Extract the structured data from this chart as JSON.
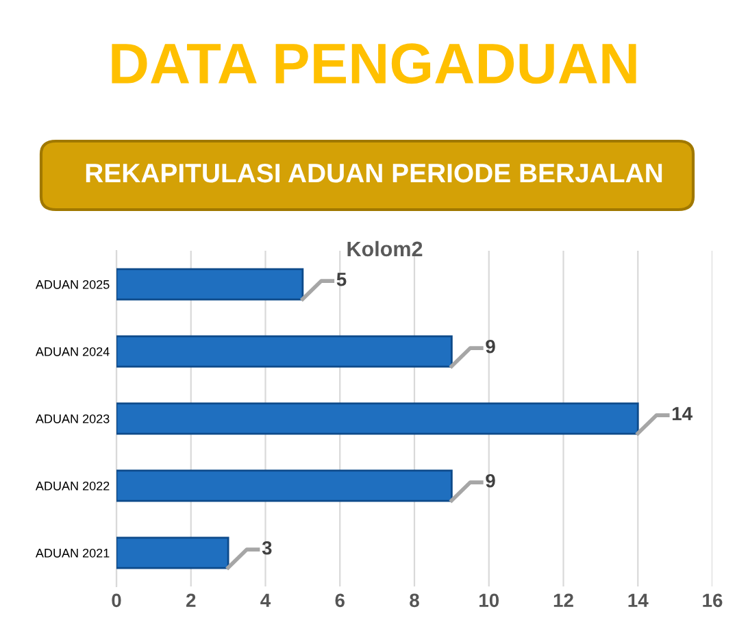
{
  "chart_data": {
    "type": "bar",
    "orientation": "horizontal",
    "title": "DATA PENGADUAN",
    "subtitle": "REKAPITULASI ADUAN PERIODE BERJALAN",
    "annotations": [
      "Kolom2"
    ],
    "categories": [
      "ADUAN 2025",
      "ADUAN 2024",
      "ADUAN 2023",
      "ADUAN 2022",
      "ADUAN 2021"
    ],
    "values": [
      5,
      9,
      14,
      9,
      3
    ],
    "color": "#1f6fbf",
    "xlim": [
      0,
      16
    ],
    "xticks": [
      0,
      2,
      4,
      6,
      8,
      10,
      12,
      14,
      16
    ],
    "grid": "x",
    "data_labels": true
  }
}
